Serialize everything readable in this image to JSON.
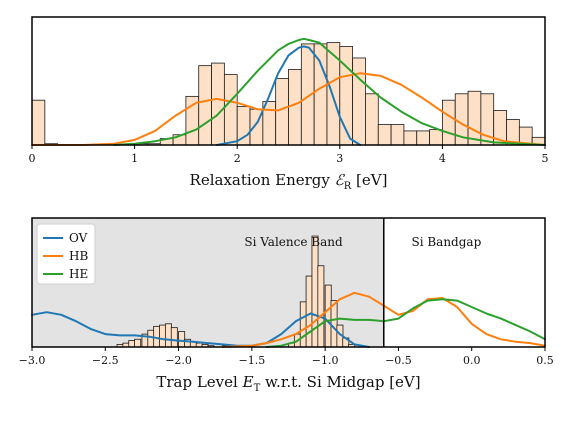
{
  "colors": {
    "bar_fill": "#fde0c5",
    "bar_stroke": "#1a1a1a",
    "OV": "#1f77b4",
    "HB": "#ff7f0e",
    "HE": "#2ca02c",
    "valence_shade": "#e3e3e3"
  },
  "chart_data": [
    {
      "type": "bar",
      "xlabel_prefix": "Relaxation Energy ",
      "xlabel_symbol": "ℰ",
      "xlabel_sub": "R",
      "xlabel_suffix": " [eV]",
      "xlim": [
        0,
        5
      ],
      "ylim": [
        0,
        1.0
      ],
      "xticks": [
        "0",
        "1",
        "2",
        "3",
        "4",
        "5"
      ],
      "xtick_values": [
        0,
        1,
        2,
        3,
        4,
        5
      ],
      "bin_width": 0.125,
      "bins": [
        {
          "x0": 0.0,
          "h": 0.35
        },
        {
          "x0": 0.125,
          "h": 0.01
        },
        {
          "x0": 1.0,
          "h": 0.01
        },
        {
          "x0": 1.125,
          "h": 0.01
        },
        {
          "x0": 1.25,
          "h": 0.05
        },
        {
          "x0": 1.375,
          "h": 0.08
        },
        {
          "x0": 1.5,
          "h": 0.38
        },
        {
          "x0": 1.625,
          "h": 0.62
        },
        {
          "x0": 1.75,
          "h": 0.64
        },
        {
          "x0": 1.875,
          "h": 0.55
        },
        {
          "x0": 2.0,
          "h": 0.3
        },
        {
          "x0": 2.125,
          "h": 0.28
        },
        {
          "x0": 2.25,
          "h": 0.34
        },
        {
          "x0": 2.375,
          "h": 0.52
        },
        {
          "x0": 2.5,
          "h": 0.59
        },
        {
          "x0": 2.625,
          "h": 0.79
        },
        {
          "x0": 2.75,
          "h": 0.79
        },
        {
          "x0": 2.875,
          "h": 0.8
        },
        {
          "x0": 3.0,
          "h": 0.77
        },
        {
          "x0": 3.125,
          "h": 0.68
        },
        {
          "x0": 3.25,
          "h": 0.4
        },
        {
          "x0": 3.375,
          "h": 0.16
        },
        {
          "x0": 3.5,
          "h": 0.16
        },
        {
          "x0": 3.625,
          "h": 0.11
        },
        {
          "x0": 3.75,
          "h": 0.11
        },
        {
          "x0": 3.875,
          "h": 0.12
        },
        {
          "x0": 4.0,
          "h": 0.35
        },
        {
          "x0": 4.125,
          "h": 0.4
        },
        {
          "x0": 4.25,
          "h": 0.42
        },
        {
          "x0": 4.375,
          "h": 0.4
        },
        {
          "x0": 4.5,
          "h": 0.27
        },
        {
          "x0": 4.625,
          "h": 0.2
        },
        {
          "x0": 4.75,
          "h": 0.14
        },
        {
          "x0": 4.875,
          "h": 0.06
        }
      ],
      "series": [
        {
          "key": "OV",
          "x": [
            1.8,
            2.0,
            2.1,
            2.2,
            2.3,
            2.4,
            2.5,
            2.6,
            2.65,
            2.7,
            2.8,
            2.9,
            3.0,
            3.1,
            3.2
          ],
          "y": [
            0.0,
            0.03,
            0.08,
            0.18,
            0.36,
            0.56,
            0.7,
            0.76,
            0.77,
            0.76,
            0.66,
            0.46,
            0.22,
            0.05,
            0.0
          ]
        },
        {
          "key": "HB",
          "x": [
            0.0,
            0.5,
            0.8,
            1.0,
            1.2,
            1.4,
            1.6,
            1.8,
            2.0,
            2.2,
            2.4,
            2.6,
            2.8,
            3.0,
            3.2,
            3.4,
            3.6,
            3.8,
            4.0,
            4.2,
            4.4,
            4.6,
            5.0
          ],
          "y": [
            0.0,
            0.0,
            0.01,
            0.04,
            0.11,
            0.23,
            0.33,
            0.36,
            0.33,
            0.28,
            0.27,
            0.33,
            0.44,
            0.53,
            0.56,
            0.54,
            0.47,
            0.37,
            0.26,
            0.16,
            0.08,
            0.03,
            0.0
          ]
        },
        {
          "key": "HE",
          "x": [
            0.8,
            1.0,
            1.2,
            1.4,
            1.6,
            1.8,
            2.0,
            2.2,
            2.4,
            2.5,
            2.6,
            2.65,
            2.7,
            2.8,
            2.9,
            3.0,
            3.2,
            3.4,
            3.6,
            3.8,
            4.0,
            4.2,
            4.5,
            5.0
          ],
          "y": [
            0.0,
            0.01,
            0.03,
            0.06,
            0.12,
            0.23,
            0.4,
            0.58,
            0.74,
            0.79,
            0.82,
            0.83,
            0.82,
            0.8,
            0.73,
            0.66,
            0.51,
            0.37,
            0.26,
            0.17,
            0.11,
            0.06,
            0.02,
            0.0
          ]
        }
      ]
    },
    {
      "type": "bar",
      "xlabel_prefix": "Trap Level ",
      "xlabel_symbol": "E",
      "xlabel_sub": "T",
      "xlabel_suffix": " w.r.t. Si Midgap [eV]",
      "xlim": [
        -3.0,
        0.5
      ],
      "ylim": [
        0,
        1.0
      ],
      "xticks": [
        "−3.0",
        "−2.5",
        "−2.0",
        "−1.5",
        "−1.0",
        "−0.5",
        "0.0",
        "0.5"
      ],
      "xtick_values": [
        -3.0,
        -2.5,
        -2.0,
        -1.5,
        -1.0,
        -0.5,
        0.0,
        0.5
      ],
      "valence_band_edge": -0.6,
      "region_labels": [
        "Si Valence Band",
        "Si Bandgap"
      ],
      "bin_width": 0.0417,
      "bins": [
        {
          "x0": -2.42,
          "h": 0.02
        },
        {
          "x0": -2.38,
          "h": 0.03
        },
        {
          "x0": -2.34,
          "h": 0.05
        },
        {
          "x0": -2.3,
          "h": 0.06
        },
        {
          "x0": -2.25,
          "h": 0.1
        },
        {
          "x0": -2.21,
          "h": 0.13
        },
        {
          "x0": -2.17,
          "h": 0.16
        },
        {
          "x0": -2.13,
          "h": 0.17
        },
        {
          "x0": -2.09,
          "h": 0.18
        },
        {
          "x0": -2.05,
          "h": 0.15
        },
        {
          "x0": -2.0,
          "h": 0.12
        },
        {
          "x0": -1.96,
          "h": 0.06
        },
        {
          "x0": -1.92,
          "h": 0.04
        },
        {
          "x0": -1.88,
          "h": 0.03
        },
        {
          "x0": -1.84,
          "h": 0.02
        },
        {
          "x0": -1.8,
          "h": 0.01
        },
        {
          "x0": -1.7,
          "h": 0.01
        },
        {
          "x0": -1.25,
          "h": 0.03
        },
        {
          "x0": -1.21,
          "h": 0.1
        },
        {
          "x0": -1.17,
          "h": 0.35
        },
        {
          "x0": -1.13,
          "h": 0.55
        },
        {
          "x0": -1.09,
          "h": 0.86
        },
        {
          "x0": -1.05,
          "h": 0.63
        },
        {
          "x0": -1.0,
          "h": 0.48
        },
        {
          "x0": -0.96,
          "h": 0.36
        },
        {
          "x0": -0.92,
          "h": 0.17
        },
        {
          "x0": -0.88,
          "h": 0.07
        },
        {
          "x0": -0.84,
          "h": 0.02
        }
      ],
      "series": [
        {
          "key": "OV",
          "x": [
            -3.0,
            -2.9,
            -2.8,
            -2.7,
            -2.6,
            -2.5,
            -2.4,
            -2.3,
            -2.2,
            -2.1,
            -2.0,
            -1.9,
            -1.8,
            -1.7,
            -1.6,
            -1.5,
            -1.4,
            -1.3,
            -1.2,
            -1.1,
            -1.0,
            -0.9,
            -0.8,
            -0.7
          ],
          "y": [
            0.25,
            0.27,
            0.25,
            0.2,
            0.14,
            0.1,
            0.09,
            0.09,
            0.08,
            0.06,
            0.05,
            0.04,
            0.03,
            0.02,
            0.01,
            0.01,
            0.03,
            0.1,
            0.2,
            0.26,
            0.22,
            0.1,
            0.02,
            0.0
          ]
        },
        {
          "key": "HB",
          "x": [
            -1.7,
            -1.5,
            -1.4,
            -1.3,
            -1.2,
            -1.1,
            -1.0,
            -0.9,
            -0.8,
            -0.7,
            -0.6,
            -0.5,
            -0.4,
            -0.3,
            -0.2,
            -0.1,
            0.0,
            0.1,
            0.2,
            0.3,
            0.4,
            0.5
          ],
          "y": [
            0.0,
            0.01,
            0.03,
            0.06,
            0.1,
            0.17,
            0.27,
            0.37,
            0.42,
            0.39,
            0.32,
            0.25,
            0.28,
            0.37,
            0.38,
            0.31,
            0.18,
            0.1,
            0.06,
            0.04,
            0.03,
            0.01
          ]
        },
        {
          "key": "HE",
          "x": [
            -1.4,
            -1.3,
            -1.2,
            -1.1,
            -1.0,
            -0.9,
            -0.8,
            -0.7,
            -0.6,
            -0.5,
            -0.4,
            -0.3,
            -0.2,
            -0.1,
            0.0,
            0.1,
            0.2,
            0.3,
            0.4,
            0.5
          ],
          "y": [
            0.0,
            0.01,
            0.04,
            0.12,
            0.2,
            0.22,
            0.21,
            0.21,
            0.2,
            0.22,
            0.3,
            0.36,
            0.37,
            0.36,
            0.31,
            0.26,
            0.22,
            0.17,
            0.12,
            0.06
          ]
        }
      ]
    }
  ],
  "legend": {
    "placement": "top-left",
    "entries": [
      {
        "key": "OV",
        "label": "OV"
      },
      {
        "key": "HB",
        "label": "HB"
      },
      {
        "key": "HE",
        "label": "HE"
      }
    ]
  }
}
